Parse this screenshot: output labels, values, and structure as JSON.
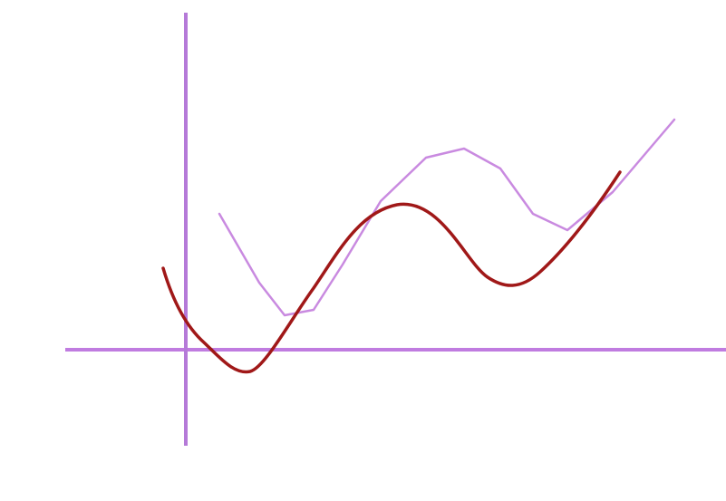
{
  "diagram": {
    "elements": [
      {
        "id": "axis-vertical-left",
        "kind": "axis",
        "orientation": "vertical",
        "color_start": "#e8204a",
        "color_mid": "#7a2a8a",
        "color_end": "#2aa6f0"
      },
      {
        "id": "axis-vertical-right",
        "kind": "axis",
        "orientation": "vertical",
        "color": "#b57ad8"
      },
      {
        "id": "axis-horizontal-top",
        "kind": "axis",
        "orientation": "horizontal",
        "color": "#c07ce0"
      },
      {
        "id": "axis-horizontal-bottom",
        "kind": "axis",
        "orientation": "horizontal",
        "color_start": "#2e7a2e",
        "color_end": "#f0502a"
      },
      {
        "id": "curve-polyline",
        "kind": "curve",
        "style": "piecewise-linear",
        "color": "#c98ae0"
      },
      {
        "id": "curve-smooth",
        "kind": "curve",
        "style": "smooth",
        "color": "#a01818"
      }
    ]
  }
}
